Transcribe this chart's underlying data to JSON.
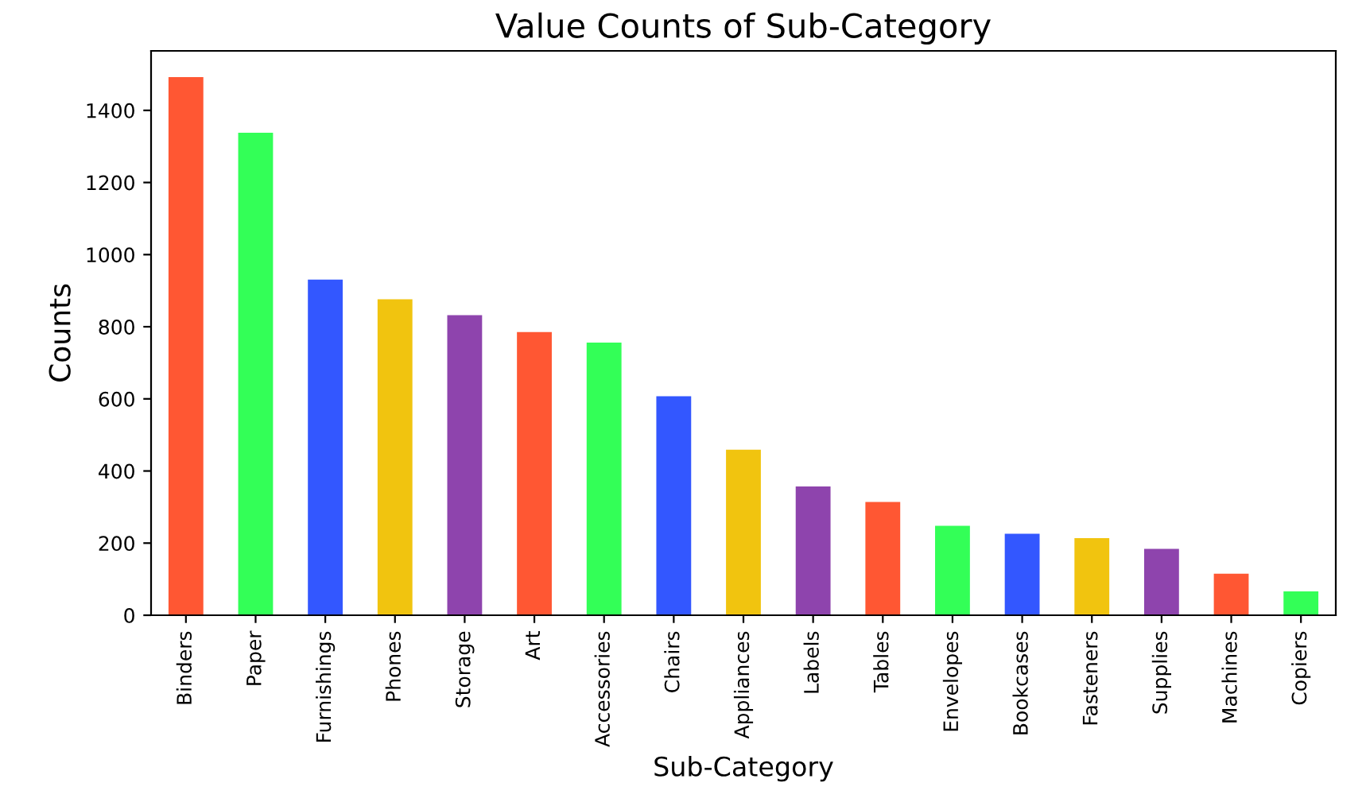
{
  "chart_data": {
    "type": "bar",
    "title": "Value Counts of Sub-Category",
    "xlabel": "Sub-Category",
    "ylabel": "Counts",
    "categories": [
      "Binders",
      "Paper",
      "Furnishings",
      "Phones",
      "Storage",
      "Art",
      "Accessories",
      "Chairs",
      "Appliances",
      "Labels",
      "Tables",
      "Envelopes",
      "Bookcases",
      "Fasteners",
      "Supplies",
      "Machines",
      "Copiers"
    ],
    "values": [
      1492,
      1338,
      931,
      876,
      832,
      785,
      756,
      607,
      459,
      357,
      314,
      248,
      226,
      214,
      184,
      115,
      66
    ],
    "colors": [
      "#ff5733",
      "#33ff57",
      "#3357ff",
      "#f1c40f",
      "#8e44ad",
      "#ff5733",
      "#33ff57",
      "#3357ff",
      "#f1c40f",
      "#8e44ad",
      "#ff5733",
      "#33ff57",
      "#3357ff",
      "#f1c40f",
      "#8e44ad",
      "#ff5733",
      "#33ff57"
    ],
    "ylim": [
      0,
      1565
    ],
    "yticks": [
      0,
      200,
      400,
      600,
      800,
      1000,
      1200,
      1400
    ],
    "grid": false,
    "legend": false
  }
}
